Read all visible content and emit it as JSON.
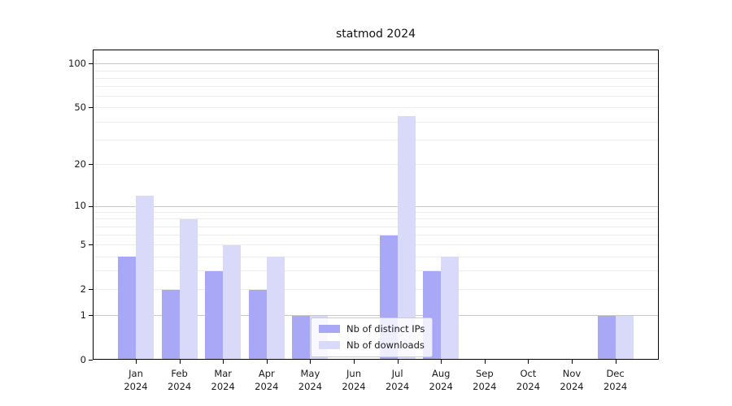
{
  "chart_data": {
    "type": "bar",
    "title": "statmod 2024",
    "categories": [
      "Jan",
      "Feb",
      "Mar",
      "Apr",
      "May",
      "Jun",
      "Jul",
      "Aug",
      "Sep",
      "Oct",
      "Nov",
      "Dec"
    ],
    "x_year_label": "2024",
    "series": [
      {
        "name": "Nb of distinct IPs",
        "color": "#a8a8f7",
        "values": [
          4,
          2,
          3,
          2,
          1,
          0,
          6,
          3,
          0,
          0,
          0,
          1
        ]
      },
      {
        "name": "Nb of downloads",
        "color": "#d9d9f9",
        "values": [
          12,
          8,
          5,
          4,
          1,
          0,
          44,
          4,
          0,
          0,
          0,
          1
        ]
      }
    ],
    "y_scale": "log1p",
    "ylim": [
      0,
      125
    ],
    "y_tick_values": [
      0,
      1,
      2,
      5,
      10,
      20,
      50,
      100
    ],
    "y_major_grid": [
      1,
      10,
      100
    ],
    "y_minor_grid": [
      2,
      3,
      4,
      5,
      6,
      7,
      8,
      9,
      20,
      30,
      40,
      50,
      60,
      70,
      80,
      90
    ],
    "grid": true,
    "legend_position": "lower center"
  },
  "colors": {
    "major_grid": "#c8c8c8",
    "minor_grid": "#ececec",
    "axis": "#000000",
    "text": "#1a1a1a",
    "legend_border": "#cccccc"
  }
}
